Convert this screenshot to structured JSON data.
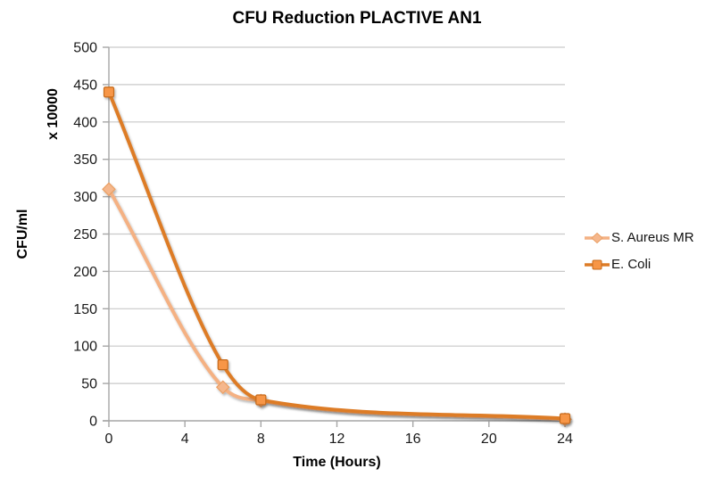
{
  "title": "CFU Reduction PLACTIVE AN1",
  "chart_data": {
    "type": "line",
    "x": [
      0,
      6,
      8,
      24
    ],
    "series": [
      {
        "name": "S. Aureus MR",
        "values": [
          310,
          45,
          27,
          2
        ],
        "color": "#F4B183",
        "marker": "diamond",
        "marker_fill": "#F5B78C",
        "marker_stroke": "#EDA express",
        "marker_stroke_color": "#EA9F64"
      },
      {
        "name": "E. Coli",
        "values": [
          440,
          75,
          28,
          3
        ],
        "color": "#DD7C27",
        "marker": "square",
        "marker_fill": "#F79646",
        "marker_stroke_color": "#C56A1B"
      }
    ],
    "xlabel": "Time (Hours)",
    "ylabel": "CFU/ml",
    "y_unit_label": "x 10000",
    "xlim": [
      0,
      24
    ],
    "ylim": [
      0,
      500
    ],
    "x_ticks": [
      0,
      4,
      8,
      12,
      16,
      20,
      24
    ],
    "y_ticks": [
      0,
      50,
      100,
      150,
      200,
      250,
      300,
      350,
      400,
      450,
      500
    ],
    "grid": true,
    "legend_position": "right",
    "gridline_color": "#C9C9C9",
    "axis_color": "#A6A6A6",
    "tick_label_color": "#1a1a1a"
  }
}
